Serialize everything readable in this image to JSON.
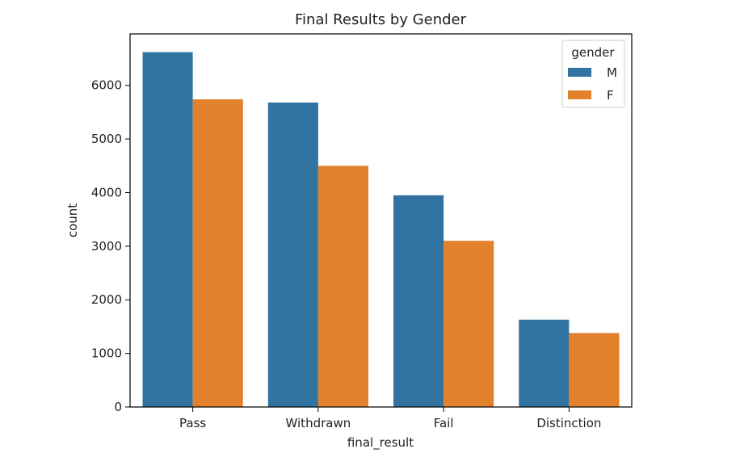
{
  "chart_data": {
    "type": "bar",
    "title": "Final Results by Gender",
    "xlabel": "final_result",
    "ylabel": "count",
    "categories": [
      "Pass",
      "Withdrawn",
      "Fail",
      "Distinction"
    ],
    "series": [
      {
        "name": "M",
        "color": "#3274a1",
        "values": [
          6620,
          5680,
          3950,
          1630
        ]
      },
      {
        "name": "F",
        "color": "#e1812c",
        "values": [
          5740,
          4500,
          3100,
          1380
        ]
      }
    ],
    "yticks": [
      0,
      1000,
      2000,
      3000,
      4000,
      5000,
      6000
    ],
    "ytick_labels": [
      "0",
      "1000",
      "2000",
      "3000",
      "4000",
      "5000",
      "6000"
    ],
    "ylim": [
      0,
      6960
    ],
    "legend": {
      "title": "gender",
      "position": "top-right"
    },
    "grid": false
  }
}
